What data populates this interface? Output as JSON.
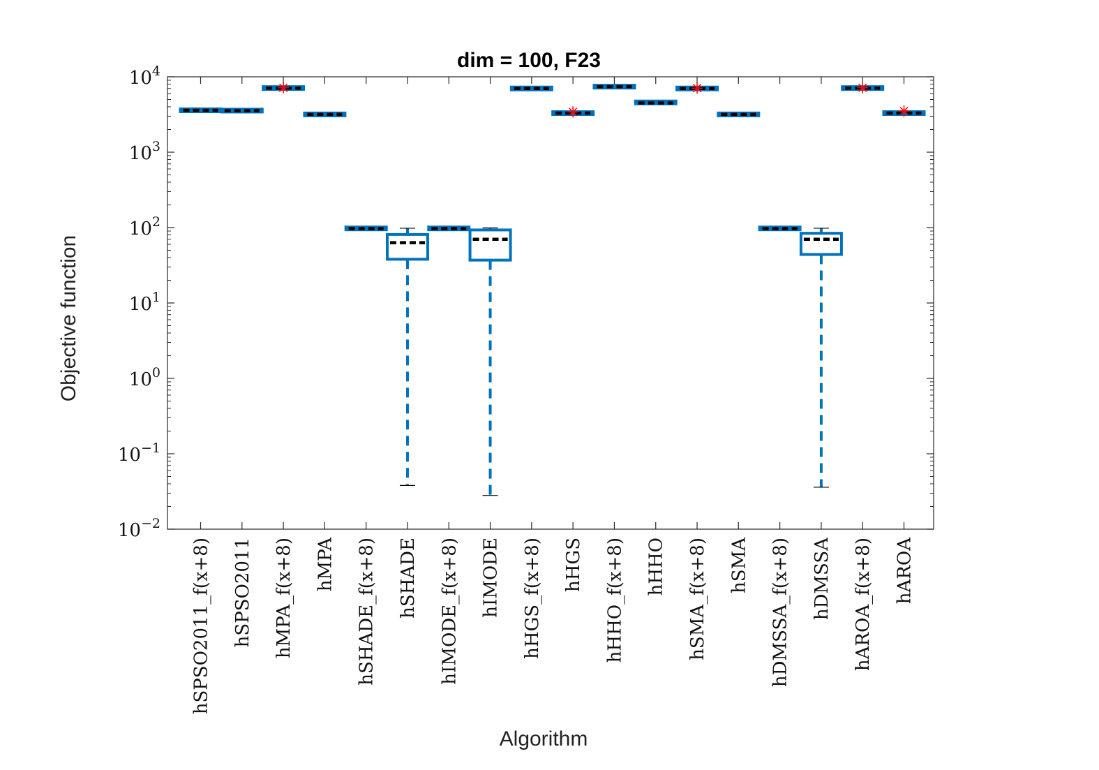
{
  "chart_data": {
    "type": "box",
    "title": "dim = 100,  F23",
    "xlabel": "Algorithm",
    "ylabel": "Objective function",
    "yscale": "log",
    "ylim": [
      0.01,
      10000
    ],
    "yticks": [
      {
        "value": 0.01,
        "base": "10",
        "exp": "−2"
      },
      {
        "value": 0.1,
        "base": "10",
        "exp": "−1"
      },
      {
        "value": 1,
        "base": "10",
        "exp": "0"
      },
      {
        "value": 10,
        "base": "10",
        "exp": "1"
      },
      {
        "value": 100,
        "base": "10",
        "exp": "2"
      },
      {
        "value": 1000,
        "base": "10",
        "exp": "3"
      },
      {
        "value": 10000,
        "base": "10",
        "exp": "4"
      }
    ],
    "colors": {
      "box": "#0072BD",
      "median": "#000000",
      "outlier": "#FF0000",
      "axis": "#262626"
    },
    "categories": [
      "hSPSO2011_f(x+8)",
      "hSPSO2011",
      "hMPA_f(x+8)",
      "hMPA",
      "hSHADE_f(x+8)",
      "hSHADE",
      "hIMODE_f(x+8)",
      "hIMODE",
      "hHGS_f(x+8)",
      "hHGS",
      "hHHO_f(x+8)",
      "hHHO",
      "hSMA_f(x+8)",
      "hSMA",
      "hDMSSA_f(x+8)",
      "hDMSSA",
      "hAROA_f(x+8)",
      "hAROA"
    ],
    "boxes": [
      {
        "min": 3580,
        "q1": 3580,
        "median": 3590,
        "q3": 3610,
        "max": 3610,
        "outliers": []
      },
      {
        "min": 3540,
        "q1": 3540,
        "median": 3560,
        "q3": 3580,
        "max": 3580,
        "outliers": []
      },
      {
        "min": 7050,
        "q1": 7050,
        "median": 7080,
        "q3": 7120,
        "max": 7120,
        "outliers": [
          7150
        ]
      },
      {
        "min": 3150,
        "q1": 3150,
        "median": 3170,
        "q3": 3190,
        "max": 3190,
        "outliers": []
      },
      {
        "min": 96,
        "q1": 96,
        "median": 97,
        "q3": 99,
        "max": 99,
        "outliers": []
      },
      {
        "min": 0.038,
        "q1": 38,
        "median": 63,
        "q3": 81,
        "max": 98,
        "outliers": []
      },
      {
        "min": 96,
        "q1": 96,
        "median": 97,
        "q3": 99,
        "max": 99,
        "outliers": []
      },
      {
        "min": 0.028,
        "q1": 37,
        "median": 70,
        "q3": 93,
        "max": 99,
        "outliers": []
      },
      {
        "min": 6950,
        "q1": 6950,
        "median": 7000,
        "q3": 7050,
        "max": 7050,
        "outliers": []
      },
      {
        "min": 3280,
        "q1": 3280,
        "median": 3300,
        "q3": 3320,
        "max": 3320,
        "outliers": [
          3420
        ]
      },
      {
        "min": 7350,
        "q1": 7350,
        "median": 7400,
        "q3": 7450,
        "max": 7450,
        "outliers": []
      },
      {
        "min": 4400,
        "q1": 4400,
        "median": 4500,
        "q3": 4750,
        "max": 4750,
        "outliers": []
      },
      {
        "min": 6950,
        "q1": 6950,
        "median": 7000,
        "q3": 7050,
        "max": 7050,
        "outliers": [
          7080
        ]
      },
      {
        "min": 3150,
        "q1": 3150,
        "median": 3170,
        "q3": 3190,
        "max": 3190,
        "outliers": []
      },
      {
        "min": 96,
        "q1": 96,
        "median": 97,
        "q3": 99,
        "max": 99,
        "outliers": []
      },
      {
        "min": 0.036,
        "q1": 44,
        "median": 70,
        "q3": 84,
        "max": 98,
        "outliers": []
      },
      {
        "min": 7050,
        "q1": 7050,
        "median": 7080,
        "q3": 7120,
        "max": 7120,
        "outliers": [
          7150
        ]
      },
      {
        "min": 3280,
        "q1": 3280,
        "median": 3300,
        "q3": 3320,
        "max": 3320,
        "outliers": [
          3520
        ]
      }
    ]
  }
}
